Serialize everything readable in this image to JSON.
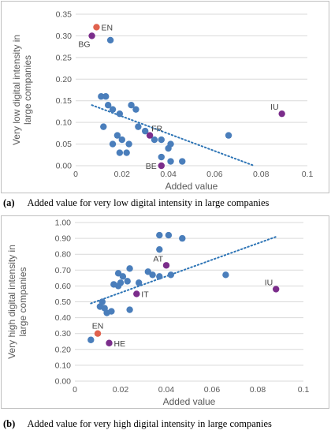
{
  "chart_data": [
    {
      "type": "scatter",
      "title": "",
      "xlabel": "Added value",
      "ylabel": "Very low digital intensity in large companies",
      "xlim": [
        0,
        0.1
      ],
      "ylim": [
        0,
        0.35
      ],
      "xticks": [
        "0",
        "0.02",
        "0.04",
        "0.06",
        "0.08",
        "0.1"
      ],
      "yticks": [
        "0.00",
        "0.05",
        "0.10",
        "0.15",
        "0.20",
        "0.25",
        "0.30",
        "0.35"
      ],
      "grid": true,
      "trendline": {
        "style": "dotted-linear",
        "x": [
          0.007,
          0.077
        ],
        "y": [
          0.14,
          0.0
        ]
      },
      "points": [
        {
          "x": 0.011,
          "y": 0.16
        },
        {
          "x": 0.013,
          "y": 0.16
        },
        {
          "x": 0.014,
          "y": 0.14
        },
        {
          "x": 0.016,
          "y": 0.13
        },
        {
          "x": 0.015,
          "y": 0.29
        },
        {
          "x": 0.019,
          "y": 0.12
        },
        {
          "x": 0.024,
          "y": 0.14
        },
        {
          "x": 0.026,
          "y": 0.13
        },
        {
          "x": 0.012,
          "y": 0.09
        },
        {
          "x": 0.018,
          "y": 0.07
        },
        {
          "x": 0.02,
          "y": 0.06
        },
        {
          "x": 0.016,
          "y": 0.05
        },
        {
          "x": 0.023,
          "y": 0.05
        },
        {
          "x": 0.019,
          "y": 0.03
        },
        {
          "x": 0.022,
          "y": 0.03
        },
        {
          "x": 0.027,
          "y": 0.09
        },
        {
          "x": 0.03,
          "y": 0.08
        },
        {
          "x": 0.034,
          "y": 0.06
        },
        {
          "x": 0.037,
          "y": 0.06
        },
        {
          "x": 0.04,
          "y": 0.04
        },
        {
          "x": 0.041,
          "y": 0.05
        },
        {
          "x": 0.037,
          "y": 0.02
        },
        {
          "x": 0.041,
          "y": 0.01
        },
        {
          "x": 0.046,
          "y": 0.01
        },
        {
          "x": 0.066,
          "y": 0.07
        }
      ],
      "labeled_points": [
        {
          "label": "EN",
          "x": 0.009,
          "y": 0.32,
          "color": "#e0624e",
          "label_side": "right"
        },
        {
          "label": "BG",
          "x": 0.007,
          "y": 0.3,
          "color": "#7b2d8b",
          "label_side": "below-left"
        },
        {
          "label": "FR",
          "x": 0.032,
          "y": 0.07,
          "color": "#7b2d8b",
          "label_side": "above-right"
        },
        {
          "label": "BE",
          "x": 0.037,
          "y": 0.0,
          "color": "#7b2d8b",
          "label_side": "left"
        },
        {
          "label": "IU",
          "x": 0.089,
          "y": 0.12,
          "color": "#7b2d8b",
          "label_side": "above-left"
        }
      ]
    },
    {
      "type": "scatter",
      "title": "",
      "xlabel": "Added value",
      "ylabel": "Very high digital intensity in large companies",
      "xlim": [
        0,
        0.1
      ],
      "ylim": [
        0,
        1.0
      ],
      "xticks": [
        "0",
        "0.02",
        "0.04",
        "0.06",
        "0.08",
        "0.1"
      ],
      "yticks": [
        "0.00",
        "0.10",
        "0.20",
        "0.30",
        "0.40",
        "0.50",
        "0.60",
        "0.70",
        "0.80",
        "0.90",
        "1.00"
      ],
      "grid": true,
      "trendline": {
        "style": "dotted-linear",
        "x": [
          0.007,
          0.088
        ],
        "y": [
          0.49,
          0.91
        ]
      },
      "points": [
        {
          "x": 0.007,
          "y": 0.26
        },
        {
          "x": 0.011,
          "y": 0.47
        },
        {
          "x": 0.012,
          "y": 0.5
        },
        {
          "x": 0.013,
          "y": 0.46
        },
        {
          "x": 0.014,
          "y": 0.43
        },
        {
          "x": 0.016,
          "y": 0.44
        },
        {
          "x": 0.017,
          "y": 0.61
        },
        {
          "x": 0.019,
          "y": 0.6
        },
        {
          "x": 0.019,
          "y": 0.68
        },
        {
          "x": 0.02,
          "y": 0.62
        },
        {
          "x": 0.021,
          "y": 0.66
        },
        {
          "x": 0.023,
          "y": 0.63
        },
        {
          "x": 0.024,
          "y": 0.71
        },
        {
          "x": 0.024,
          "y": 0.45
        },
        {
          "x": 0.028,
          "y": 0.62
        },
        {
          "x": 0.032,
          "y": 0.69
        },
        {
          "x": 0.034,
          "y": 0.67
        },
        {
          "x": 0.037,
          "y": 0.92
        },
        {
          "x": 0.037,
          "y": 0.83
        },
        {
          "x": 0.037,
          "y": 0.66
        },
        {
          "x": 0.041,
          "y": 0.92
        },
        {
          "x": 0.042,
          "y": 0.67
        },
        {
          "x": 0.047,
          "y": 0.9
        },
        {
          "x": 0.066,
          "y": 0.67
        }
      ],
      "labeled_points": [
        {
          "label": "AT",
          "x": 0.04,
          "y": 0.73,
          "color": "#7b2d8b",
          "label_side": "above-left"
        },
        {
          "label": "IT",
          "x": 0.027,
          "y": 0.55,
          "color": "#7b2d8b",
          "label_side": "right"
        },
        {
          "label": "EN",
          "x": 0.01,
          "y": 0.3,
          "color": "#e0624e",
          "label_side": "above"
        },
        {
          "label": "HE",
          "x": 0.015,
          "y": 0.24,
          "color": "#7b2d8b",
          "label_side": "right"
        },
        {
          "label": "IU",
          "x": 0.088,
          "y": 0.58,
          "color": "#7b2d8b",
          "label_side": "above-left"
        }
      ]
    }
  ],
  "colors": {
    "point": "#4a7ebb",
    "trend": "#2e75b6",
    "grid": "#d9d9d9",
    "axis_text": "#595959"
  },
  "captions": {
    "a_tag": "(a)",
    "a_text": "Added value for very low digital intensity in large companies",
    "b_tag": "(b)",
    "b_text": "Added value for very high digital intensity in large companies"
  }
}
